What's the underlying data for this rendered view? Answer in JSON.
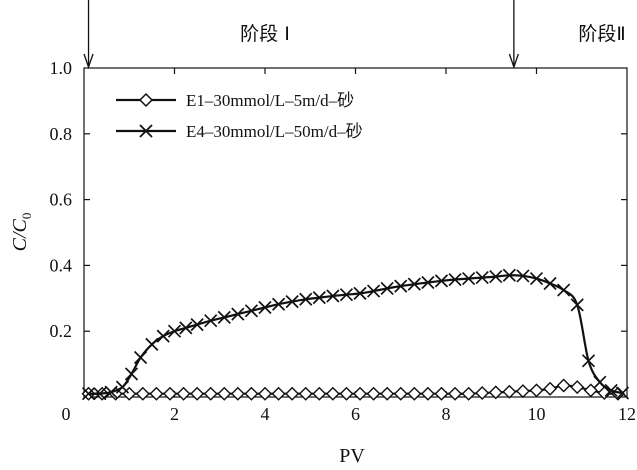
{
  "chart_data": {
    "type": "line",
    "title": "",
    "xlabel": "PV",
    "ylabel_main": "C/C",
    "ylabel_sub": "0",
    "xlim": [
      0,
      12
    ],
    "ylim": [
      0,
      1.0
    ],
    "x_ticks": [
      {
        "value": 0,
        "label": "0"
      },
      {
        "value": 2,
        "label": "2"
      },
      {
        "value": 4,
        "label": "4"
      },
      {
        "value": 6,
        "label": "6"
      },
      {
        "value": 8,
        "label": "8"
      },
      {
        "value": 10,
        "label": "10"
      },
      {
        "value": 12,
        "label": "12"
      }
    ],
    "y_ticks": [
      {
        "value": 0.2,
        "label": "0.2"
      },
      {
        "value": 0.4,
        "label": "0.4"
      },
      {
        "value": 0.6,
        "label": "0.6"
      },
      {
        "value": 0.8,
        "label": "0.8"
      },
      {
        "value": 1.0,
        "label": "1.0"
      }
    ],
    "stage_markers": [
      {
        "x": 0.1,
        "label": "阶段 I",
        "label_x": 4.0
      },
      {
        "x": 9.5,
        "label": "阶段Ⅱ",
        "label_x": 11.45
      }
    ],
    "legend_position": "top-left",
    "series": [
      {
        "name": "E1–30mmol/L–5m/d–砂",
        "marker": "diamond",
        "x": [
          0.1,
          0.4,
          0.7,
          1.0,
          1.3,
          1.6,
          1.9,
          2.2,
          2.5,
          2.8,
          3.1,
          3.4,
          3.7,
          4.0,
          4.3,
          4.6,
          4.9,
          5.2,
          5.5,
          5.8,
          6.1,
          6.4,
          6.7,
          7.0,
          7.3,
          7.6,
          7.9,
          8.2,
          8.5,
          8.8,
          9.1,
          9.4,
          9.7,
          10.0,
          10.3,
          10.6,
          10.9,
          11.2,
          11.5,
          11.8
        ],
        "y": [
          0.01,
          0.01,
          0.01,
          0.01,
          0.01,
          0.01,
          0.01,
          0.01,
          0.01,
          0.01,
          0.01,
          0.01,
          0.01,
          0.01,
          0.01,
          0.01,
          0.01,
          0.01,
          0.01,
          0.01,
          0.01,
          0.01,
          0.01,
          0.01,
          0.01,
          0.01,
          0.01,
          0.01,
          0.01,
          0.012,
          0.014,
          0.016,
          0.018,
          0.02,
          0.025,
          0.035,
          0.03,
          0.02,
          0.012,
          0.01
        ]
      },
      {
        "name": "E4–30mmol/L–50m/d–砂",
        "marker": "x",
        "x": [
          0.1,
          0.35,
          0.6,
          0.85,
          1.05,
          1.25,
          1.5,
          1.75,
          2.0,
          2.25,
          2.5,
          2.8,
          3.1,
          3.4,
          3.7,
          4.0,
          4.3,
          4.6,
          4.9,
          5.2,
          5.5,
          5.8,
          6.1,
          6.4,
          6.7,
          7.0,
          7.3,
          7.6,
          7.9,
          8.2,
          8.5,
          8.8,
          9.1,
          9.4,
          9.7,
          10.0,
          10.3,
          10.6,
          10.9,
          11.15,
          11.4,
          11.65,
          11.9
        ],
        "y": [
          0.01,
          0.01,
          0.015,
          0.03,
          0.07,
          0.12,
          0.16,
          0.185,
          0.2,
          0.21,
          0.22,
          0.232,
          0.242,
          0.252,
          0.262,
          0.272,
          0.282,
          0.29,
          0.297,
          0.302,
          0.307,
          0.311,
          0.315,
          0.322,
          0.33,
          0.337,
          0.343,
          0.348,
          0.353,
          0.357,
          0.36,
          0.363,
          0.366,
          0.37,
          0.368,
          0.36,
          0.345,
          0.325,
          0.28,
          0.11,
          0.045,
          0.02,
          0.012
        ]
      }
    ]
  }
}
